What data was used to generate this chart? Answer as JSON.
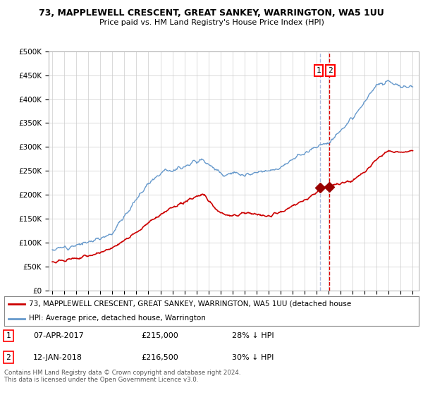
{
  "title": "73, MAPPLEWELL CRESCENT, GREAT SANKEY, WARRINGTON, WA5 1UU",
  "subtitle": "Price paid vs. HM Land Registry's House Price Index (HPI)",
  "ylabel_ticks": [
    "£0",
    "£50K",
    "£100K",
    "£150K",
    "£200K",
    "£250K",
    "£300K",
    "£350K",
    "£400K",
    "£450K",
    "£500K"
  ],
  "ytick_values": [
    0,
    50000,
    100000,
    150000,
    200000,
    250000,
    300000,
    350000,
    400000,
    450000,
    500000
  ],
  "ylim": [
    0,
    500000
  ],
  "hpi_color": "#6699cc",
  "price_color": "#cc0000",
  "vline1_color": "#aabbdd",
  "vline2_color": "#dd0000",
  "marker_color": "#990000",
  "annotation1": {
    "x_label": "1",
    "date": "07-APR-2017",
    "price": "£215,000",
    "hpi_diff": "28% ↓ HPI"
  },
  "annotation2": {
    "x_label": "2",
    "date": "12-JAN-2018",
    "price": "£216,500",
    "hpi_diff": "30% ↓ HPI"
  },
  "legend_line1": "73, MAPPLEWELL CRESCENT, GREAT SANKEY, WARRINGTON, WA5 1UU (detached house",
  "legend_line2": "HPI: Average price, detached house, Warrington",
  "footer": "Contains HM Land Registry data © Crown copyright and database right 2024.\nThis data is licensed under the Open Government Licence v3.0.",
  "sale1_year": 2017.27,
  "sale2_year": 2018.04,
  "sale1_price": 215000,
  "sale2_price": 216500
}
